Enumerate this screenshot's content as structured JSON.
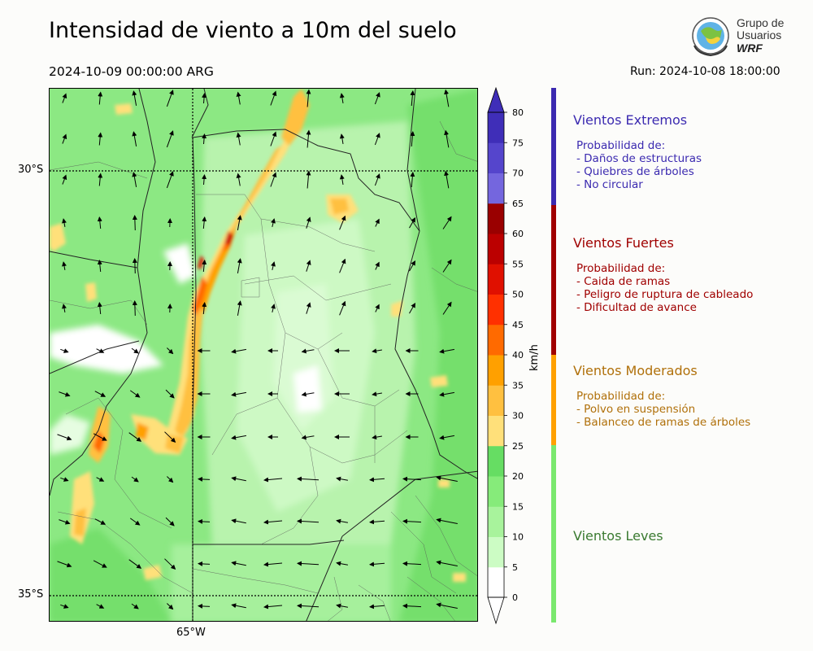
{
  "title": "Intensidad de viento a 10m del suelo",
  "valid_time": "2024-10-09 00:00:00 ARG",
  "run": "Run: 2024-10-08 18:00:00",
  "logo": {
    "line1": "Grupo de",
    "line2": "Usuarios",
    "line3": "WRF"
  },
  "axes": {
    "lat_labels": [
      "30°S",
      "35°S"
    ],
    "lon_labels": [
      "65°W"
    ]
  },
  "colorbar": {
    "unit": "km/h",
    "ticks": [
      "0",
      "5",
      "10",
      "15",
      "20",
      "25",
      "30",
      "35",
      "40",
      "45",
      "50",
      "55",
      "60",
      "65",
      "70",
      "75",
      "80"
    ],
    "colors": [
      "#ffffff",
      "#ccfcc4",
      "#a8f39c",
      "#86eb7a",
      "#66dd63",
      "#ffe07a",
      "#ffc040",
      "#ffa000",
      "#ff6a00",
      "#ff3000",
      "#e01000",
      "#bb0000",
      "#9a0000",
      "#7466de",
      "#5545cc",
      "#3f2eb8"
    ],
    "extend": "both"
  },
  "categories": [
    {
      "title": "Vientos Extremos",
      "color": "#3b2ab0",
      "bar_color": "#3b2ab0",
      "lines": [
        "Probabilidad de:",
        "- Daños de estructuras",
        "- Quiebres de árboles",
        "- No circular"
      ]
    },
    {
      "title": "Vientos Fuertes",
      "color": "#a00000",
      "bar_color": "#a00000",
      "lines": [
        "Probabilidad de:",
        "- Caida de ramas",
        "- Peligro de ruptura de cableado",
        "- Dificultad de avance"
      ]
    },
    {
      "title": "Vientos Moderados",
      "color": "#b0700a",
      "bar_color": "#ffa000",
      "lines": [
        "Probabilidad de:",
        "- Polvo en suspensión",
        "- Balanceo de ramas de árboles"
      ]
    },
    {
      "title": "Vientos Leves",
      "color": "#3a7a30",
      "bar_color": "#7ae86e",
      "lines": []
    }
  ]
}
